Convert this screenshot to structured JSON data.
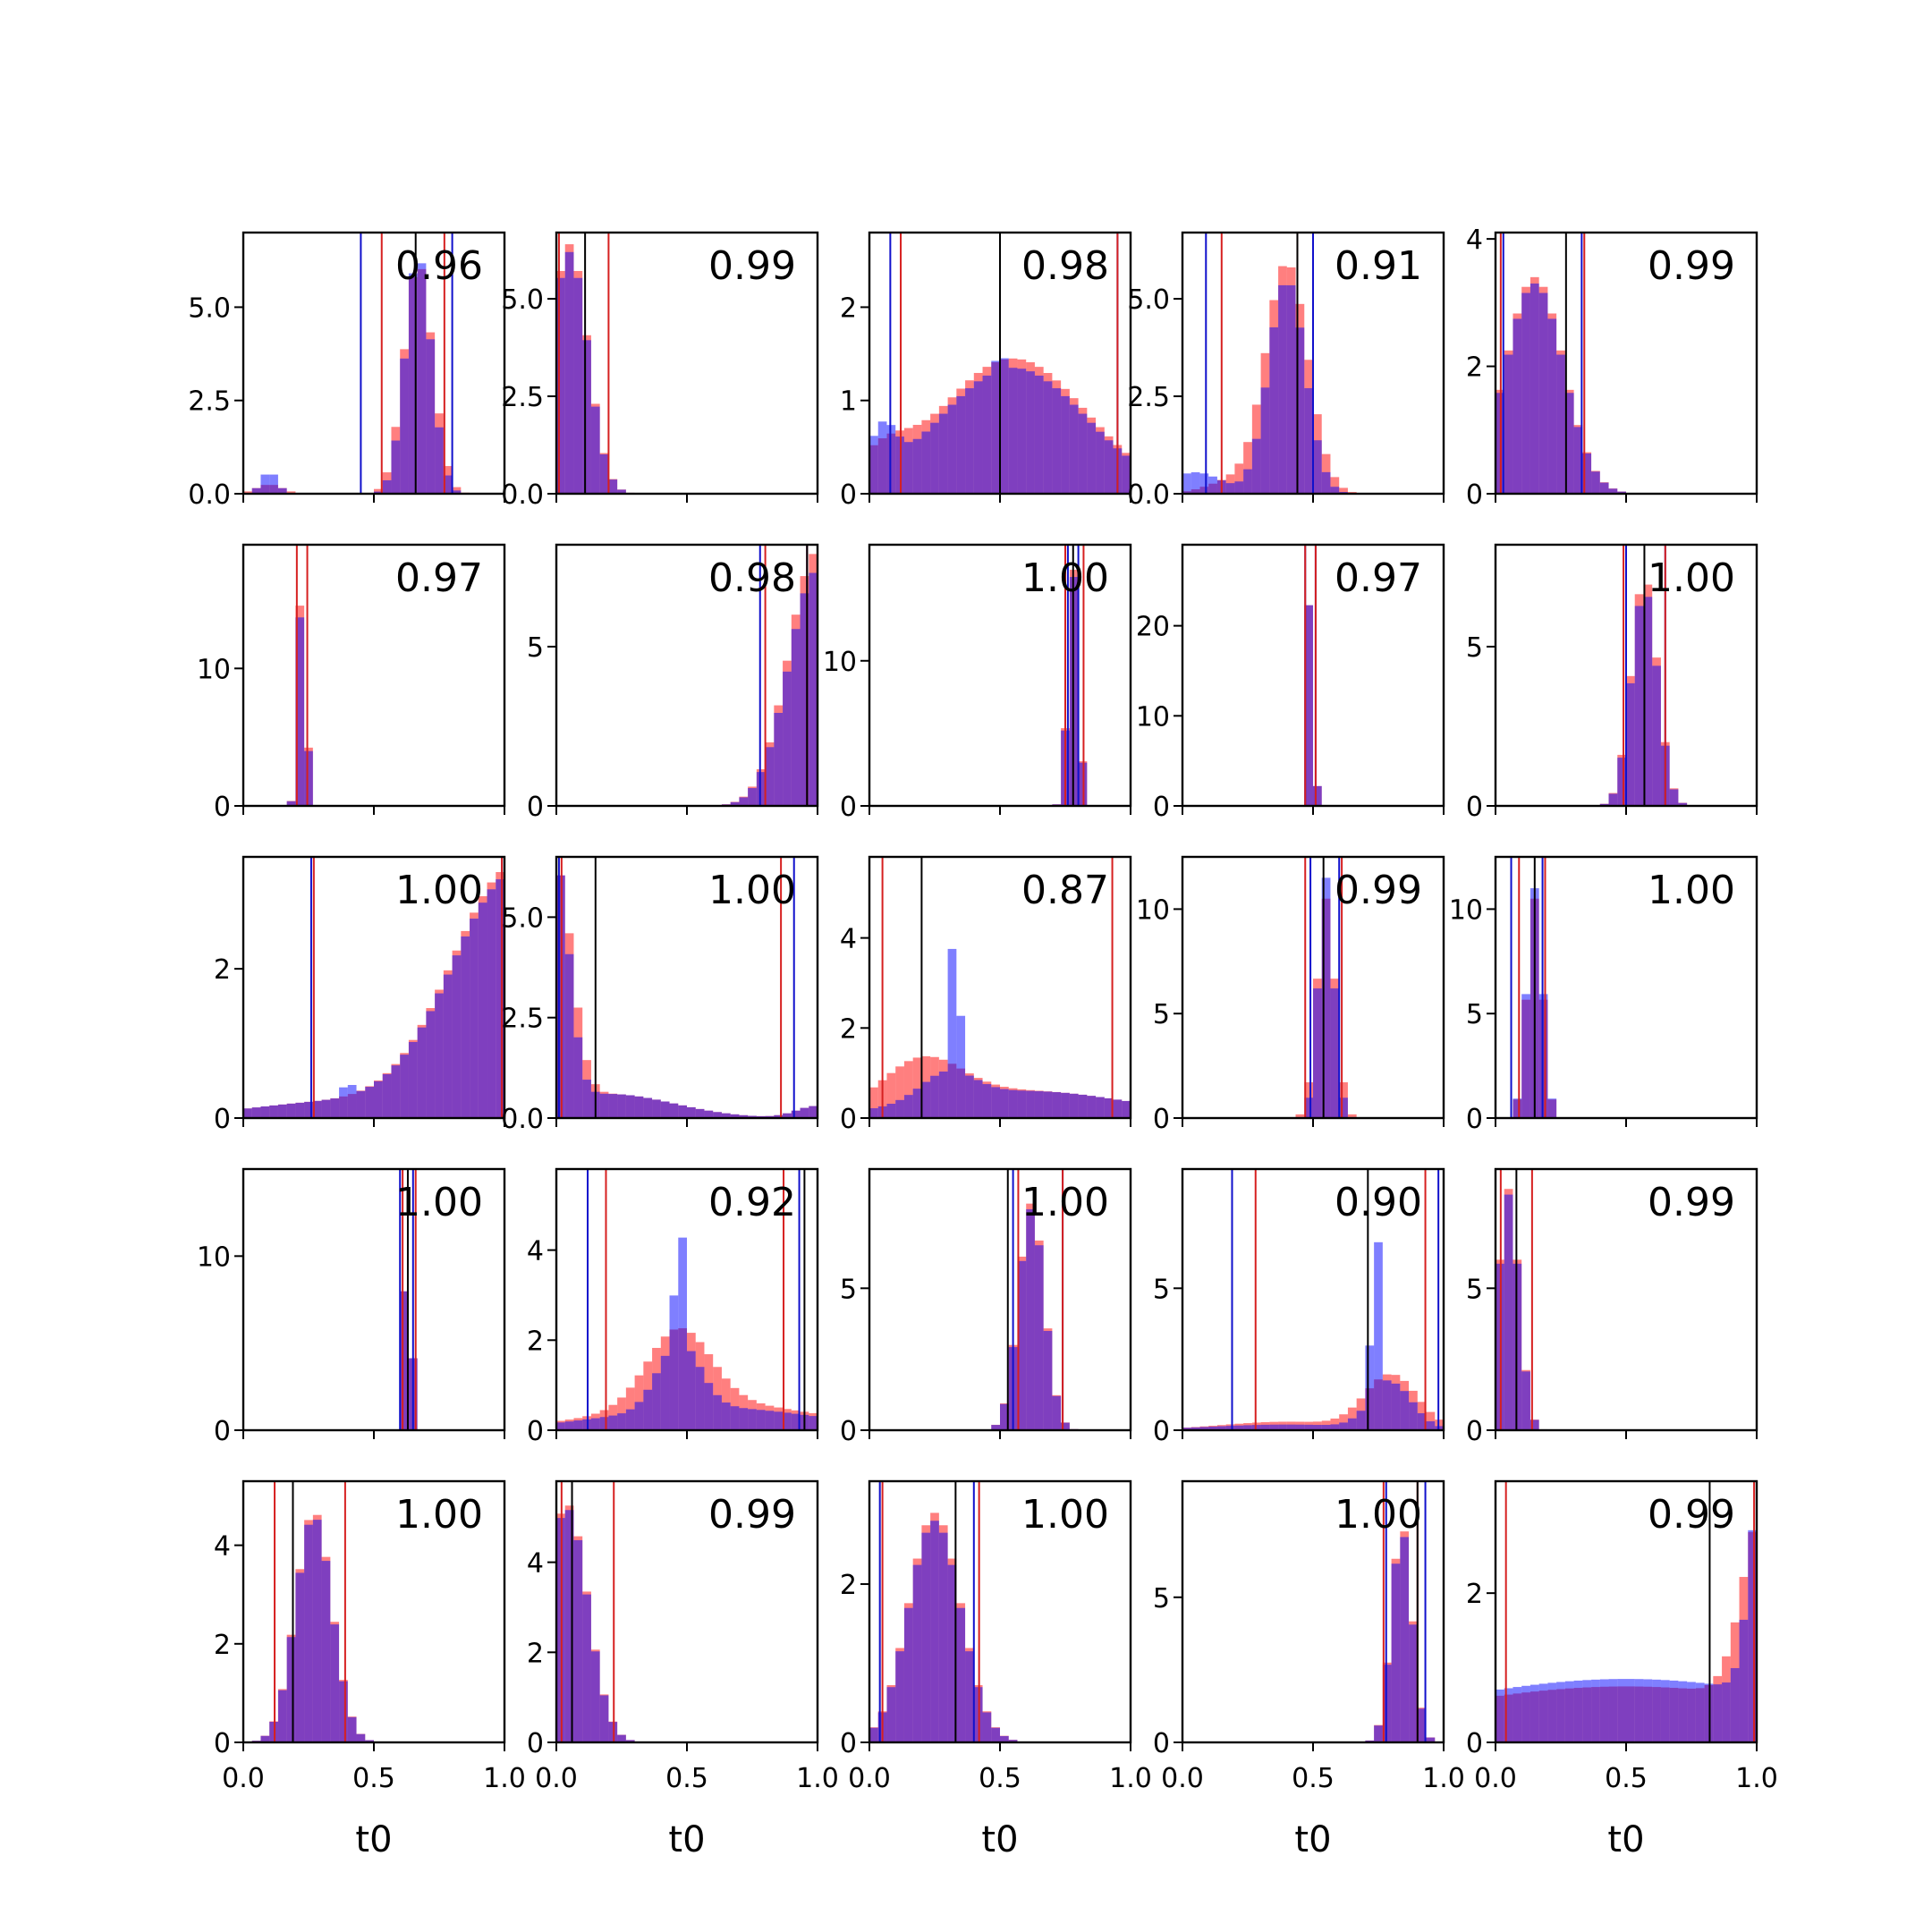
{
  "colors": {
    "posterior_a": "#ff0000",
    "posterior_b": "#0000ff",
    "overlap": "#7f3fbf",
    "truth_line": "#000000",
    "interval_a": "#d62020",
    "interval_b": "#1010cc"
  },
  "chart_data": {
    "type": "bar",
    "layout": "5x5 grid of histograms",
    "x_label": "t0",
    "xlim": [
      0,
      1
    ],
    "x_ticks": [
      "0.0",
      "0.5",
      "1.0"
    ],
    "bins": 30,
    "panels": [
      {
        "label": "0.96",
        "ylim": [
          0,
          7.0
        ],
        "yticks": [
          {
            "v": 0,
            "t": "0.0"
          },
          {
            "v": 2.5,
            "t": "2.5"
          },
          {
            "v": 5,
            "t": "5.0"
          }
        ],
        "shape": [
          {
            "c": 0.67,
            "w": 0.055,
            "a": 6.2
          },
          {
            "c": 0.1,
            "w": 0.05,
            "a": 0.25
          }
        ],
        "shape_b": [
          {
            "c": 0.67,
            "w": 0.05,
            "a": 6.4
          },
          {
            "c": 0.1,
            "w": 0.03,
            "a": 0.6
          }
        ],
        "truth": 0.66,
        "int_a": [
          0.53,
          0.77
        ],
        "int_b": [
          0.45,
          0.8
        ]
      },
      {
        "label": "0.99",
        "ylim": [
          0,
          6.7
        ],
        "yticks": [
          {
            "v": 0,
            "t": "0.0"
          },
          {
            "v": 2.5,
            "t": "2.5"
          },
          {
            "v": 5,
            "t": "5.0"
          }
        ],
        "shape": [
          {
            "c": 0.05,
            "w": 0.07,
            "a": 6.4
          }
        ],
        "shape_b": [
          {
            "c": 0.05,
            "w": 0.07,
            "a": 6.2
          }
        ],
        "truth": 0.11,
        "int_a": [
          0.01,
          0.2
        ],
        "int_b": null
      },
      {
        "label": "0.98",
        "ylim": [
          0,
          2.8
        ],
        "yticks": [
          {
            "v": 0,
            "t": "0"
          },
          {
            "v": 1,
            "t": "1"
          },
          {
            "v": 2,
            "t": "2"
          }
        ],
        "shape": [
          {
            "c": 0.55,
            "w": 0.28,
            "a": 1.45
          },
          {
            "c": 0.05,
            "w": 0.1,
            "a": 0.3
          }
        ],
        "shape_b": [
          {
            "c": 0.55,
            "w": 0.28,
            "a": 1.35
          },
          {
            "c": 0.5,
            "w": 0.01,
            "a": 0.45
          },
          {
            "c": 0.05,
            "w": 0.05,
            "a": 0.5
          }
        ],
        "truth": 0.5,
        "int_a": [
          0.12,
          0.95
        ],
        "int_b": [
          0.08,
          0.95
        ]
      },
      {
        "label": "0.91",
        "ylim": [
          0,
          6.7
        ],
        "yticks": [
          {
            "v": 0,
            "t": "0.0"
          },
          {
            "v": 2.5,
            "t": "2.5"
          },
          {
            "v": 5,
            "t": "5.0"
          }
        ],
        "shape": [
          {
            "c": 0.4,
            "w": 0.08,
            "a": 5.9
          },
          {
            "c": 0.2,
            "w": 0.1,
            "a": 0.35
          }
        ],
        "shape_b": [
          {
            "c": 0.4,
            "w": 0.07,
            "a": 5.5
          },
          {
            "c": 0.05,
            "w": 0.1,
            "a": 0.55
          }
        ],
        "truth": 0.44,
        "int_a": [
          0.15,
          0.44
        ],
        "int_b": [
          0.09,
          0.5
        ]
      },
      {
        "label": "0.99",
        "ylim": [
          0,
          4.1
        ],
        "yticks": [
          {
            "v": 0,
            "t": "0"
          },
          {
            "v": 2,
            "t": "2"
          },
          {
            "v": 4,
            "t": "4"
          }
        ],
        "shape": [
          {
            "c": 0.15,
            "w": 0.11,
            "a": 3.4
          }
        ],
        "shape_b": [
          {
            "c": 0.15,
            "w": 0.11,
            "a": 3.3
          }
        ],
        "truth": 0.27,
        "int_a": [
          0.02,
          0.34
        ],
        "int_b": [
          0.03,
          0.33
        ]
      },
      {
        "label": "0.97",
        "ylim": [
          0,
          19
        ],
        "yticks": [
          {
            "v": 0,
            "t": "0"
          },
          {
            "v": 10,
            "t": "10"
          }
        ],
        "shape": [
          {
            "c": 0.225,
            "w": 0.015,
            "a": 17
          }
        ],
        "shape_b": [
          {
            "c": 0.225,
            "w": 0.015,
            "a": 16
          }
        ],
        "truth": null,
        "int_a": [
          0.205,
          0.245
        ],
        "int_b": null
      },
      {
        "label": "0.98",
        "ylim": [
          0,
          8.2
        ],
        "yticks": [
          {
            "v": 0,
            "t": "0"
          },
          {
            "v": 5,
            "t": "5"
          }
        ],
        "shape": [
          {
            "c": 1.0,
            "w": 0.11,
            "a": 8.0
          }
        ],
        "shape_b": [
          {
            "c": 1.0,
            "w": 0.11,
            "a": 7.4
          }
        ],
        "truth": 0.96,
        "int_a": [
          0.8,
          0.96
        ],
        "int_b": [
          0.78,
          0.96
        ]
      },
      {
        "label": "1.00",
        "ylim": [
          0,
          18
        ],
        "yticks": [
          {
            "v": 0,
            "t": "0"
          },
          {
            "v": 10,
            "t": "10"
          }
        ],
        "shape": [
          {
            "c": 0.78,
            "w": 0.02,
            "a": 16.5
          }
        ],
        "shape_b": [
          {
            "c": 0.78,
            "w": 0.02,
            "a": 16
          }
        ],
        "truth": 0.78,
        "int_a": [
          0.75,
          0.82
        ],
        "int_b": [
          0.76,
          0.8
        ]
      },
      {
        "label": "0.97",
        "ylim": [
          0,
          29
        ],
        "yticks": [
          {
            "v": 0,
            "t": "0"
          },
          {
            "v": 10,
            "t": "10"
          },
          {
            "v": 20,
            "t": "20"
          }
        ],
        "shape": [
          {
            "c": 0.49,
            "w": 0.012,
            "a": 26
          }
        ],
        "shape_b": [
          {
            "c": 0.49,
            "w": 0.012,
            "a": 26
          }
        ],
        "truth": null,
        "int_a": [
          0.47,
          0.51
        ],
        "int_b": [
          0.47,
          0.51
        ]
      },
      {
        "label": "1.00",
        "ylim": [
          0,
          8.2
        ],
        "yticks": [
          {
            "v": 0,
            "t": "0"
          },
          {
            "v": 5,
            "t": "5"
          }
        ],
        "shape": [
          {
            "c": 0.57,
            "w": 0.05,
            "a": 7.2
          }
        ],
        "shape_b": [
          {
            "c": 0.57,
            "w": 0.05,
            "a": 6.8
          }
        ],
        "truth": 0.57,
        "int_a": [
          0.49,
          0.65
        ],
        "int_b": [
          0.5,
          0.65
        ]
      },
      {
        "label": "1.00",
        "ylim": [
          0,
          3.5
        ],
        "yticks": [
          {
            "v": 0,
            "t": "0"
          },
          {
            "v": 2,
            "t": "2"
          }
        ],
        "shape": [
          {
            "c": 1.05,
            "w": 0.25,
            "a": 3.4
          },
          {
            "c": 0.3,
            "w": 0.3,
            "a": 0.2
          }
        ],
        "shape_b": [
          {
            "c": 1.05,
            "w": 0.25,
            "a": 3.3
          },
          {
            "c": 0.4,
            "w": 0.01,
            "a": 0.5
          },
          {
            "c": 0.3,
            "w": 0.3,
            "a": 0.2
          }
        ],
        "truth": null,
        "int_a": [
          0.27,
          0.99
        ],
        "int_b": [
          0.26,
          0.99
        ]
      },
      {
        "label": "1.00",
        "ylim": [
          0,
          6.5
        ],
        "yticks": [
          {
            "v": 0,
            "t": "0.0"
          },
          {
            "v": 2.5,
            "t": "2.5"
          },
          {
            "v": 5,
            "t": "5.0"
          }
        ],
        "shape": [
          {
            "c": 0.0,
            "w": 0.06,
            "a": 5.8
          },
          {
            "c": 0.2,
            "w": 0.25,
            "a": 0.6
          },
          {
            "c": 1.0,
            "w": 0.08,
            "a": 0.3
          }
        ],
        "shape_b": [
          {
            "c": 0.0,
            "w": 0.05,
            "a": 5.9
          },
          {
            "c": 0.2,
            "w": 0.25,
            "a": 0.6
          },
          {
            "c": 1.0,
            "w": 0.08,
            "a": 0.3
          }
        ],
        "truth": 0.15,
        "int_a": [
          0.02,
          0.86
        ],
        "int_b": [
          0.01,
          0.91
        ]
      },
      {
        "label": "0.87",
        "ylim": [
          0,
          5.8
        ],
        "yticks": [
          {
            "v": 0,
            "t": "0"
          },
          {
            "v": 2,
            "t": "2"
          },
          {
            "v": 4,
            "t": "4"
          }
        ],
        "shape": [
          {
            "c": 0.2,
            "w": 0.15,
            "a": 1.0
          },
          {
            "c": 0.6,
            "w": 0.4,
            "a": 0.6
          }
        ],
        "shape_b": [
          {
            "c": 0.33,
            "w": 0.012,
            "a": 5.0
          },
          {
            "c": 0.3,
            "w": 0.1,
            "a": 0.6
          },
          {
            "c": 0.6,
            "w": 0.4,
            "a": 0.6
          }
        ],
        "truth": 0.2,
        "int_a": [
          0.05,
          0.93
        ],
        "int_b": null
      },
      {
        "label": "0.99",
        "ylim": [
          0,
          12.5
        ],
        "yticks": [
          {
            "v": 0,
            "t": "0"
          },
          {
            "v": 5,
            "t": "5"
          },
          {
            "v": 10,
            "t": "10"
          }
        ],
        "shape": [
          {
            "c": 0.55,
            "w": 0.035,
            "a": 10.5
          }
        ],
        "shape_b": [
          {
            "c": 0.55,
            "w": 0.03,
            "a": 11.5
          }
        ],
        "truth": 0.54,
        "int_a": [
          0.47,
          0.61
        ],
        "int_b": [
          0.49,
          0.6
        ]
      },
      {
        "label": "1.00",
        "ylim": [
          0,
          12.5
        ],
        "yticks": [
          {
            "v": 0,
            "t": "0"
          },
          {
            "v": 5,
            "t": "5"
          },
          {
            "v": 10,
            "t": "10"
          }
        ],
        "shape": [
          {
            "c": 0.15,
            "w": 0.03,
            "a": 10.5
          }
        ],
        "shape_b": [
          {
            "c": 0.15,
            "w": 0.03,
            "a": 11.0
          }
        ],
        "truth": 0.15,
        "int_a": [
          0.09,
          0.19
        ],
        "int_b": [
          0.06,
          0.18
        ]
      },
      {
        "label": "1.00",
        "ylim": [
          0,
          15
        ],
        "yticks": [
          {
            "v": 0,
            "t": "0"
          },
          {
            "v": 10,
            "t": "10"
          }
        ],
        "shape": [
          {
            "c": 0.63,
            "w": 0.013,
            "a": 13.5
          }
        ],
        "shape_b": [
          {
            "c": 0.63,
            "w": 0.013,
            "a": 13.5
          }
        ],
        "truth": 0.63,
        "int_a": [
          0.61,
          0.66
        ],
        "int_b": [
          0.6,
          0.65
        ]
      },
      {
        "label": "0.92",
        "ylim": [
          0,
          5.8
        ],
        "yticks": [
          {
            "v": 0,
            "t": "0"
          },
          {
            "v": 2,
            "t": "2"
          },
          {
            "v": 4,
            "t": "4"
          }
        ],
        "shape": [
          {
            "c": 0.47,
            "w": 0.12,
            "a": 1.7
          },
          {
            "c": 0.6,
            "w": 0.4,
            "a": 0.6
          }
        ],
        "shape_b": [
          {
            "c": 0.47,
            "w": 0.012,
            "a": 4.3
          },
          {
            "c": 0.47,
            "w": 0.08,
            "a": 1.5
          },
          {
            "c": 0.6,
            "w": 0.4,
            "a": 0.5
          }
        ],
        "truth": 0.95,
        "int_a": [
          0.19,
          0.87
        ],
        "int_b": [
          0.12,
          0.93
        ]
      },
      {
        "label": "1.00",
        "ylim": [
          0,
          9.2
        ],
        "yticks": [
          {
            "v": 0,
            "t": "0"
          },
          {
            "v": 5,
            "t": "5"
          }
        ],
        "shape": [
          {
            "c": 0.62,
            "w": 0.05,
            "a": 8.0
          }
        ],
        "shape_b": [
          {
            "c": 0.62,
            "w": 0.05,
            "a": 7.8
          }
        ],
        "truth": 0.53,
        "int_a": [
          0.57,
          0.74
        ],
        "int_b": [
          0.55,
          0.74
        ]
      },
      {
        "label": "0.90",
        "ylim": [
          0,
          9.2
        ],
        "yticks": [
          {
            "v": 0,
            "t": "0"
          },
          {
            "v": 5,
            "t": "5"
          }
        ],
        "shape": [
          {
            "c": 0.8,
            "w": 0.1,
            "a": 1.9
          },
          {
            "c": 0.4,
            "w": 0.25,
            "a": 0.3
          }
        ],
        "shape_b": [
          {
            "c": 0.74,
            "w": 0.015,
            "a": 6.5
          },
          {
            "c": 0.8,
            "w": 0.08,
            "a": 1.6
          },
          {
            "c": 0.4,
            "w": 0.3,
            "a": 0.2
          }
        ],
        "truth": 0.71,
        "int_a": [
          0.28,
          0.93
        ],
        "int_b": [
          0.19,
          0.98
        ]
      },
      {
        "label": "0.99",
        "ylim": [
          0,
          9.2
        ],
        "yticks": [
          {
            "v": 0,
            "t": "0"
          },
          {
            "v": 5,
            "t": "5"
          }
        ],
        "shape": [
          {
            "c": 0.05,
            "w": 0.04,
            "a": 8.5
          }
        ],
        "shape_b": [
          {
            "c": 0.05,
            "w": 0.04,
            "a": 8.3
          }
        ],
        "truth": 0.08,
        "int_a": [
          0.02,
          0.14
        ],
        "int_b": null
      },
      {
        "label": "1.00",
        "ylim": [
          0,
          5.3
        ],
        "yticks": [
          {
            "v": 0,
            "t": "0"
          },
          {
            "v": 2,
            "t": "2"
          },
          {
            "v": 4,
            "t": "4"
          }
        ],
        "shape": [
          {
            "c": 0.27,
            "w": 0.07,
            "a": 4.7
          }
        ],
        "shape_b": [
          {
            "c": 0.27,
            "w": 0.07,
            "a": 4.6
          }
        ],
        "truth": 0.19,
        "int_a": [
          0.12,
          0.39
        ],
        "int_b": null
      },
      {
        "label": "0.99",
        "ylim": [
          0,
          5.8
        ],
        "yticks": [
          {
            "v": 0,
            "t": "0"
          },
          {
            "v": 2,
            "t": "2"
          },
          {
            "v": 4,
            "t": "4"
          }
        ],
        "shape": [
          {
            "c": 0.04,
            "w": 0.08,
            "a": 5.3
          }
        ],
        "shape_b": [
          {
            "c": 0.04,
            "w": 0.08,
            "a": 5.2
          }
        ],
        "truth": 0.06,
        "int_a": [
          0.02,
          0.22
        ],
        "int_b": null
      },
      {
        "label": "1.00",
        "ylim": [
          0,
          3.3
        ],
        "yticks": [
          {
            "v": 0,
            "t": "0"
          },
          {
            "v": 2,
            "t": "2"
          }
        ],
        "shape": [
          {
            "c": 0.25,
            "w": 0.1,
            "a": 2.9
          }
        ],
        "shape_b": [
          {
            "c": 0.25,
            "w": 0.1,
            "a": 2.8
          }
        ],
        "truth": 0.33,
        "int_a": [
          0.05,
          0.42
        ],
        "int_b": [
          0.04,
          0.4
        ]
      },
      {
        "label": "1.00",
        "ylim": [
          0,
          9.0
        ],
        "yticks": [
          {
            "v": 0,
            "t": "0"
          },
          {
            "v": 5,
            "t": "5"
          }
        ],
        "shape": [
          {
            "c": 0.84,
            "w": 0.04,
            "a": 7.5
          }
        ],
        "shape_b": [
          {
            "c": 0.84,
            "w": 0.04,
            "a": 7.3
          }
        ],
        "truth": 0.9,
        "int_a": [
          0.77,
          0.9
        ],
        "int_b": [
          0.78,
          0.93
        ]
      },
      {
        "label": "0.99",
        "ylim": [
          0,
          3.5
        ],
        "yticks": [
          {
            "v": 0,
            "t": "0"
          },
          {
            "v": 2,
            "t": "2"
          }
        ],
        "shape": [
          {
            "c": 1.03,
            "w": 0.08,
            "a": 2.6
          },
          {
            "c": 0.5,
            "w": 0.8,
            "a": 0.75
          }
        ],
        "shape_b": [
          {
            "c": 1.03,
            "w": 0.05,
            "a": 3.3
          },
          {
            "c": 0.5,
            "w": 0.8,
            "a": 0.85
          }
        ],
        "truth": 0.82,
        "int_a": [
          0.04,
          0.99
        ],
        "int_b": null
      }
    ]
  }
}
